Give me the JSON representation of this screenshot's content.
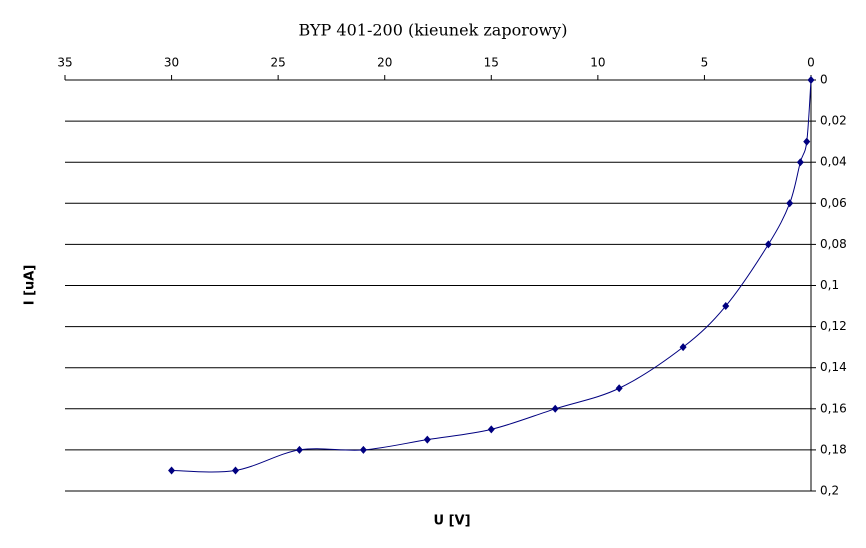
{
  "chart_data": {
    "type": "line",
    "title": "BYP 401-200 (kieunek zaporowy)",
    "x_label": "U [V]",
    "y_label": "I [uA]",
    "x": [
      30,
      27,
      24,
      21,
      18,
      15,
      12,
      9,
      6,
      4,
      2,
      1,
      0.5,
      0.2,
      0
    ],
    "values": [
      0.19,
      0.19,
      0.18,
      0.18,
      0.175,
      0.17,
      0.16,
      0.15,
      0.13,
      0.11,
      0.08,
      0.06,
      0.04,
      0.03,
      0
    ],
    "color": "#000080",
    "xlim": [
      35,
      0
    ],
    "xticks": [
      35,
      30,
      25,
      20,
      15,
      10,
      5,
      0
    ],
    "ylim": [
      0,
      0.2
    ],
    "yticks": [
      0,
      {
        "value": 0.02,
        "label": "0,02"
      },
      {
        "value": 0.04,
        "label": "0,04"
      },
      {
        "value": 0.06,
        "label": "0,06"
      },
      {
        "value": 0.08,
        "label": "0,08"
      },
      {
        "value": 0.1,
        "label": "0,1"
      },
      {
        "value": 0.12,
        "label": "0,12"
      },
      {
        "value": 0.14,
        "label": "0,14"
      },
      {
        "value": 0.16,
        "label": "0,16"
      },
      {
        "value": 0.18,
        "label": "0,18"
      },
      {
        "value": 0.2,
        "label": "0,2"
      }
    ],
    "y_inverted": true,
    "grid": true,
    "smooth": true
  }
}
